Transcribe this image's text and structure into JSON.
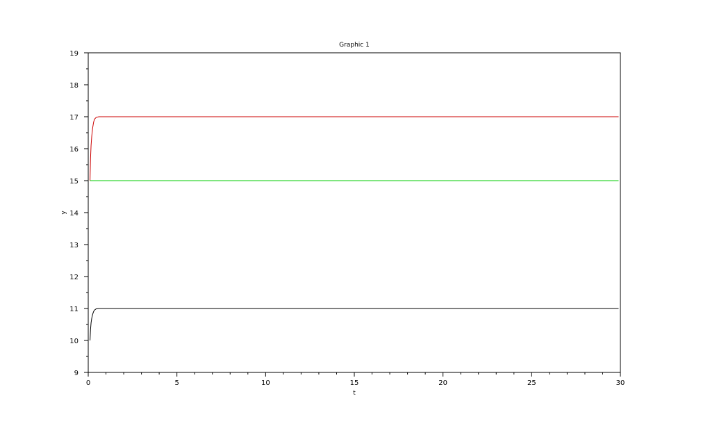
{
  "chart_data": {
    "type": "line",
    "title": "Graphic 1",
    "xlabel": "t",
    "ylabel": "y",
    "xlim": [
      0,
      30
    ],
    "ylim": [
      9,
      19
    ],
    "xticks": [
      0,
      5,
      10,
      15,
      20,
      25,
      30
    ],
    "yticks": [
      9,
      10,
      11,
      12,
      13,
      14,
      15,
      16,
      17,
      18,
      19
    ],
    "grid": false,
    "legend": "none",
    "series": [
      {
        "name": "series-black",
        "color": "#000000",
        "x": [
          0.1,
          0.13,
          0.16,
          0.2,
          0.25,
          0.3,
          0.35,
          0.45,
          0.6,
          1,
          5,
          10,
          15,
          20,
          25,
          29.9
        ],
        "y": [
          10,
          10.35,
          10.55,
          10.7,
          10.82,
          10.9,
          10.95,
          10.99,
          11,
          11,
          11,
          11,
          11,
          11,
          11,
          11
        ]
      },
      {
        "name": "series-red",
        "color": "#cc0000",
        "x": [
          0.1,
          0.13,
          0.16,
          0.2,
          0.25,
          0.3,
          0.35,
          0.45,
          0.6,
          1,
          5,
          10,
          15,
          20,
          25,
          29.9
        ],
        "y": [
          15,
          15.7,
          16.1,
          16.4,
          16.65,
          16.82,
          16.92,
          16.98,
          17,
          17,
          17,
          17,
          17,
          17,
          17,
          17
        ]
      },
      {
        "name": "series-green",
        "color": "#00cc00",
        "x": [
          0.1,
          29.9
        ],
        "y": [
          15,
          15
        ]
      }
    ]
  }
}
